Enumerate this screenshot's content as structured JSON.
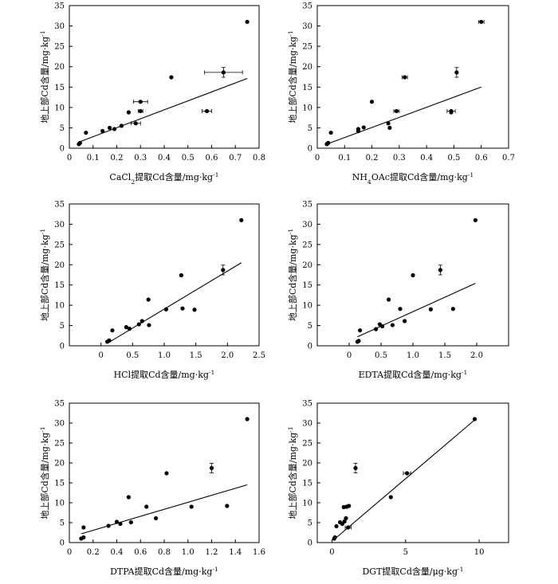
{
  "chart_data": [
    {
      "type": "scatter",
      "xlabel": "CaCl₂提取Cd含量/mg·kg⁻¹",
      "ylabel": "地上部Cd含量/mg·kg⁻¹",
      "xlim": [
        0,
        0.8
      ],
      "ylim": [
        0,
        35
      ],
      "xticks": [
        0,
        0.1,
        0.2,
        0.3,
        0.4,
        0.5,
        0.6,
        0.7,
        0.8
      ],
      "xtick_labels": [
        "0",
        "0.1",
        "0.2",
        "0.3",
        "0.4",
        "0.5",
        "0.6",
        "0.7",
        "0.8"
      ],
      "yticks": [
        0,
        5,
        10,
        15,
        20,
        25,
        30,
        35
      ],
      "ytick_labels": [
        "0",
        "5",
        "10",
        "15",
        "20",
        "25",
        "30",
        "35"
      ],
      "points": [
        {
          "x": 0.04,
          "y": 1.0
        },
        {
          "x": 0.045,
          "y": 1.3
        },
        {
          "x": 0.07,
          "y": 3.8
        },
        {
          "x": 0.14,
          "y": 4.2
        },
        {
          "x": 0.17,
          "y": 5.0
        },
        {
          "x": 0.19,
          "y": 4.7
        },
        {
          "x": 0.22,
          "y": 5.5
        },
        {
          "x": 0.25,
          "y": 8.8
        },
        {
          "x": 0.28,
          "y": 6.1,
          "xerr": 0.02
        },
        {
          "x": 0.3,
          "y": 9.1,
          "xerr": 0.01
        },
        {
          "x": 0.3,
          "y": 11.4,
          "xerr": 0.03
        },
        {
          "x": 0.43,
          "y": 17.4
        },
        {
          "x": 0.58,
          "y": 9.1,
          "xerr": 0.02
        },
        {
          "x": 0.65,
          "y": 18.6,
          "xerr": 0.08,
          "yerr": 1.2
        },
        {
          "x": 0.75,
          "y": 31.0
        }
      ],
      "fit": [
        [
          0.04,
          1.5
        ],
        [
          0.75,
          17.1
        ]
      ]
    },
    {
      "type": "scatter",
      "xlabel": "NH₄OAc提取Cd含量/mg·kg⁻¹",
      "ylabel": "地上部Cd含量/mg·kg⁻¹",
      "xlim": [
        0,
        0.7
      ],
      "ylim": [
        0,
        35
      ],
      "xticks": [
        0,
        0.1,
        0.2,
        0.3,
        0.4,
        0.5,
        0.6,
        0.7
      ],
      "xtick_labels": [
        "0",
        "0.1",
        "0.2",
        "0.3",
        "0.4",
        "0.5",
        "0.6",
        "0.7"
      ],
      "yticks": [
        0,
        5,
        10,
        15,
        20,
        25,
        30,
        35
      ],
      "ytick_labels": [
        "0",
        "5",
        "10",
        "15",
        "20",
        "25",
        "30",
        "35"
      ],
      "points": [
        {
          "x": 0.035,
          "y": 1.0
        },
        {
          "x": 0.04,
          "y": 1.3
        },
        {
          "x": 0.05,
          "y": 3.8
        },
        {
          "x": 0.15,
          "y": 4.2
        },
        {
          "x": 0.15,
          "y": 4.7
        },
        {
          "x": 0.17,
          "y": 5.1
        },
        {
          "x": 0.2,
          "y": 11.4
        },
        {
          "x": 0.26,
          "y": 6.1
        },
        {
          "x": 0.265,
          "y": 5.0
        },
        {
          "x": 0.29,
          "y": 9.1,
          "xerr": 0.01
        },
        {
          "x": 0.32,
          "y": 17.4,
          "xerr": 0.01
        },
        {
          "x": 0.49,
          "y": 9.1,
          "xerr": 0.015
        },
        {
          "x": 0.49,
          "y": 8.8
        },
        {
          "x": 0.51,
          "y": 18.6,
          "yerr": 1.2
        },
        {
          "x": 0.6,
          "y": 31.0,
          "xerr": 0.01
        }
      ],
      "fit": [
        [
          0.035,
          1.0
        ],
        [
          0.6,
          15.0
        ]
      ]
    },
    {
      "type": "scatter",
      "xlabel": "HCl提取Cd含量/mg·kg⁻¹",
      "ylabel": "地上部Cd含量/mg·kg⁻¹",
      "xlim": [
        -0.5,
        2.5
      ],
      "ylim": [
        0,
        35
      ],
      "xticks": [
        0,
        0.5,
        1.0,
        1.5,
        2.0,
        2.5
      ],
      "xtick_labels": [
        "0",
        "0.5",
        "1.0",
        "1.5",
        "2.0",
        "2.5"
      ],
      "yticks": [
        0,
        5,
        10,
        15,
        20,
        25,
        30,
        35
      ],
      "ytick_labels": [
        "0",
        "5",
        "10",
        "15",
        "20",
        "25",
        "30",
        "35"
      ],
      "points": [
        {
          "x": 0.1,
          "y": 1.0
        },
        {
          "x": 0.13,
          "y": 1.3
        },
        {
          "x": 0.18,
          "y": 3.8
        },
        {
          "x": 0.4,
          "y": 4.6
        },
        {
          "x": 0.45,
          "y": 4.2
        },
        {
          "x": 0.6,
          "y": 5.3
        },
        {
          "x": 0.65,
          "y": 6.1
        },
        {
          "x": 0.75,
          "y": 11.4
        },
        {
          "x": 0.76,
          "y": 5.1
        },
        {
          "x": 1.03,
          "y": 9.0
        },
        {
          "x": 1.27,
          "y": 17.4
        },
        {
          "x": 1.29,
          "y": 9.2
        },
        {
          "x": 1.48,
          "y": 8.9
        },
        {
          "x": 1.93,
          "y": 18.7,
          "yerr": 1.2
        },
        {
          "x": 2.22,
          "y": 31.0
        }
      ],
      "fit": [
        [
          0.1,
          0.6
        ],
        [
          2.22,
          20.5
        ]
      ]
    },
    {
      "type": "scatter",
      "xlabel": "EDTA提取Cd含量/mg·kg⁻¹",
      "ylabel": "地上部Cd含量/mg·kg⁻¹",
      "xlim": [
        -0.5,
        2.5
      ],
      "ylim": [
        0,
        35
      ],
      "xticks": [
        0,
        0.5,
        1.0,
        1.5,
        2.0
      ],
      "xtick_labels": [
        "0",
        "0.5",
        "1.0",
        "1.5",
        "2.0"
      ],
      "yticks": [
        0,
        5,
        10,
        15,
        20,
        25,
        30,
        35
      ],
      "ytick_labels": [
        "0",
        "5",
        "10",
        "15",
        "20",
        "25",
        "30",
        "35"
      ],
      "points": [
        {
          "x": 0.13,
          "y": 1.0
        },
        {
          "x": 0.15,
          "y": 1.2
        },
        {
          "x": 0.17,
          "y": 3.8
        },
        {
          "x": 0.42,
          "y": 4.1
        },
        {
          "x": 0.48,
          "y": 5.3
        },
        {
          "x": 0.52,
          "y": 4.8
        },
        {
          "x": 0.62,
          "y": 11.4
        },
        {
          "x": 0.68,
          "y": 5.1
        },
        {
          "x": 0.8,
          "y": 9.1
        },
        {
          "x": 0.87,
          "y": 6.1
        },
        {
          "x": 1.0,
          "y": 17.4
        },
        {
          "x": 1.28,
          "y": 9.0
        },
        {
          "x": 1.43,
          "y": 18.7,
          "yerr": 1.2
        },
        {
          "x": 1.63,
          "y": 9.1
        },
        {
          "x": 1.98,
          "y": 31.0
        }
      ],
      "fit": [
        [
          0.13,
          2.2
        ],
        [
          1.98,
          15.4
        ]
      ]
    },
    {
      "type": "scatter",
      "xlabel": "DTPA提取Cd含量/mg·kg⁻¹",
      "ylabel": "地上部Cd含量/mg·kg⁻¹",
      "xlim": [
        0,
        1.6
      ],
      "ylim": [
        0,
        35
      ],
      "xticks": [
        0,
        0.2,
        0.4,
        0.6,
        0.8,
        1.0,
        1.2,
        1.4,
        1.6
      ],
      "xtick_labels": [
        "0",
        "0.2",
        "0.4",
        "0.6",
        "0.8",
        "1.0",
        "1.2",
        "1.4",
        "1.6"
      ],
      "yticks": [
        0,
        5,
        10,
        15,
        20,
        25,
        30,
        35
      ],
      "ytick_labels": [
        "0",
        "5",
        "10",
        "15",
        "20",
        "25",
        "30",
        "35"
      ],
      "points": [
        {
          "x": 0.1,
          "y": 1.0
        },
        {
          "x": 0.12,
          "y": 1.3
        },
        {
          "x": 0.12,
          "y": 3.8
        },
        {
          "x": 0.33,
          "y": 4.2
        },
        {
          "x": 0.4,
          "y": 5.2
        },
        {
          "x": 0.43,
          "y": 4.7
        },
        {
          "x": 0.5,
          "y": 11.4
        },
        {
          "x": 0.52,
          "y": 5.1
        },
        {
          "x": 0.65,
          "y": 9.0
        },
        {
          "x": 0.73,
          "y": 6.1
        },
        {
          "x": 0.82,
          "y": 17.4
        },
        {
          "x": 1.03,
          "y": 9.0
        },
        {
          "x": 1.2,
          "y": 18.7,
          "yerr": 1.2
        },
        {
          "x": 1.33,
          "y": 9.2
        },
        {
          "x": 1.5,
          "y": 31.0
        }
      ],
      "fit": [
        [
          0.1,
          2.2
        ],
        [
          1.5,
          14.5
        ]
      ]
    },
    {
      "type": "scatter",
      "xlabel": "DGT提取Cd含量/μg·kg⁻¹",
      "ylabel": "地上部Cd含量/mg·kg⁻¹",
      "xlim": [
        -1,
        12
      ],
      "ylim": [
        0,
        35
      ],
      "xticks": [
        0,
        5,
        10
      ],
      "xtick_labels": [
        "0",
        "5",
        "10"
      ],
      "yticks": [
        0,
        5,
        10,
        15,
        20,
        25,
        30,
        35
      ],
      "ytick_labels": [
        "0",
        "5",
        "10",
        "15",
        "20",
        "25",
        "30",
        "35"
      ],
      "points": [
        {
          "x": 0.15,
          "y": 1.0
        },
        {
          "x": 0.2,
          "y": 1.3
        },
        {
          "x": 0.3,
          "y": 4.1
        },
        {
          "x": 0.55,
          "y": 5.1
        },
        {
          "x": 0.7,
          "y": 4.7
        },
        {
          "x": 0.85,
          "y": 5.3
        },
        {
          "x": 0.8,
          "y": 8.9
        },
        {
          "x": 0.95,
          "y": 6.1
        },
        {
          "x": 1.0,
          "y": 9.0
        },
        {
          "x": 1.1,
          "y": 3.8,
          "xerr": 0.2
        },
        {
          "x": 1.15,
          "y": 9.2
        },
        {
          "x": 1.6,
          "y": 18.7,
          "yerr": 1.2
        },
        {
          "x": 4.0,
          "y": 11.4
        },
        {
          "x": 5.1,
          "y": 17.4,
          "xerr": 0.25
        },
        {
          "x": 9.7,
          "y": 31.0
        }
      ],
      "fit": [
        [
          0.15,
          0.8
        ],
        [
          9.7,
          30.8
        ]
      ]
    }
  ]
}
